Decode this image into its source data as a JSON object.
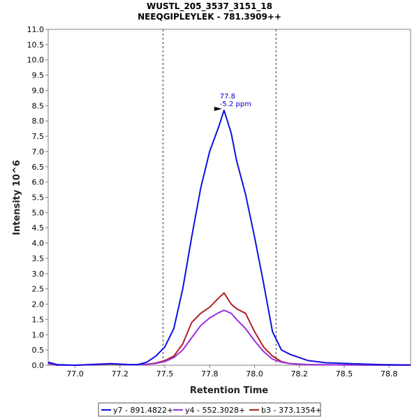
{
  "chart_data": {
    "type": "line",
    "title": "WUSTL_205_3537_3151_18",
    "subtitle": "NEEQGIPLEYLEK - 781.3909++",
    "xlabel": "Retention Time",
    "ylabel": "Intensity 10^6",
    "xlim": [
      76.85,
      78.87
    ],
    "ylim": [
      0,
      11.0
    ],
    "xticks": [
      "77.0",
      "77.2",
      "77.5",
      "77.8",
      "78.0",
      "78.2",
      "78.5",
      "78.8"
    ],
    "xtick_values": [
      77.0,
      77.25,
      77.5,
      77.75,
      78.0,
      78.25,
      78.5,
      78.75
    ],
    "yticks": [
      "0.0",
      "0.5",
      "1.0",
      "1.5",
      "2.0",
      "2.5",
      "3.0",
      "3.5",
      "4.0",
      "4.5",
      "5.0",
      "5.5",
      "6.0",
      "6.5",
      "7.0",
      "7.5",
      "8.0",
      "8.5",
      "9.0",
      "9.5",
      "10.0",
      "10.5",
      "11.0"
    ],
    "ytick_values": [
      0,
      0.5,
      1,
      1.5,
      2,
      2.5,
      3,
      3.5,
      4,
      4.5,
      5,
      5.5,
      6,
      6.5,
      7,
      7.5,
      8,
      8.5,
      9,
      9.5,
      10,
      10.5,
      11
    ],
    "grid": false,
    "legend_position": "bottom",
    "integration_bounds": [
      77.49,
      78.12
    ],
    "annotation": {
      "x": 77.83,
      "y": 8.35,
      "line1": "77.8",
      "line2": "-5.2 ppm"
    },
    "series": [
      {
        "name": "y7 - 891.4822+",
        "color": "#1010e0",
        "x": [
          76.85,
          76.9,
          77.0,
          77.1,
          77.2,
          77.3,
          77.35,
          77.4,
          77.45,
          77.5,
          77.55,
          77.6,
          77.65,
          77.7,
          77.75,
          77.8,
          77.83,
          77.87,
          77.9,
          77.95,
          78.0,
          78.05,
          78.1,
          78.15,
          78.2,
          78.3,
          78.4,
          78.5,
          78.6,
          78.7,
          78.87
        ],
        "y": [
          0.1,
          0.02,
          0.0,
          0.02,
          0.05,
          0.02,
          0.02,
          0.1,
          0.3,
          0.6,
          1.2,
          2.5,
          4.2,
          5.8,
          7.0,
          7.8,
          8.35,
          7.6,
          6.7,
          5.6,
          4.2,
          2.7,
          1.1,
          0.5,
          0.35,
          0.15,
          0.08,
          0.06,
          0.04,
          0.02,
          0.01
        ]
      },
      {
        "name": "y4 - 552.3028+",
        "color": "#9a30e0",
        "x": [
          76.85,
          76.9,
          77.0,
          77.1,
          77.2,
          77.3,
          77.4,
          77.45,
          77.5,
          77.55,
          77.6,
          77.65,
          77.7,
          77.75,
          77.8,
          77.83,
          77.87,
          77.9,
          77.95,
          78.0,
          78.05,
          78.1,
          78.15,
          78.2,
          78.3,
          78.5,
          78.87
        ],
        "y": [
          0.05,
          0.0,
          0.0,
          0.03,
          0.05,
          0.02,
          0.03,
          0.06,
          0.12,
          0.25,
          0.5,
          0.9,
          1.3,
          1.55,
          1.72,
          1.8,
          1.7,
          1.5,
          1.2,
          0.8,
          0.45,
          0.2,
          0.1,
          0.05,
          0.02,
          0.01,
          0.0
        ]
      },
      {
        "name": "b3 - 373.1354+",
        "color": "#b02020",
        "x": [
          76.85,
          76.9,
          77.0,
          77.1,
          77.2,
          77.3,
          77.4,
          77.45,
          77.5,
          77.55,
          77.6,
          77.65,
          77.7,
          77.75,
          77.8,
          77.83,
          77.87,
          77.9,
          77.95,
          78.0,
          78.05,
          78.1,
          78.15,
          78.2,
          78.3,
          78.5,
          78.87
        ],
        "y": [
          0.08,
          0.0,
          0.0,
          0.02,
          0.04,
          0.02,
          0.03,
          0.07,
          0.15,
          0.3,
          0.7,
          1.4,
          1.7,
          1.9,
          2.2,
          2.37,
          2.0,
          1.85,
          1.7,
          1.1,
          0.6,
          0.3,
          0.12,
          0.05,
          0.02,
          0.01,
          0.0
        ]
      }
    ]
  }
}
